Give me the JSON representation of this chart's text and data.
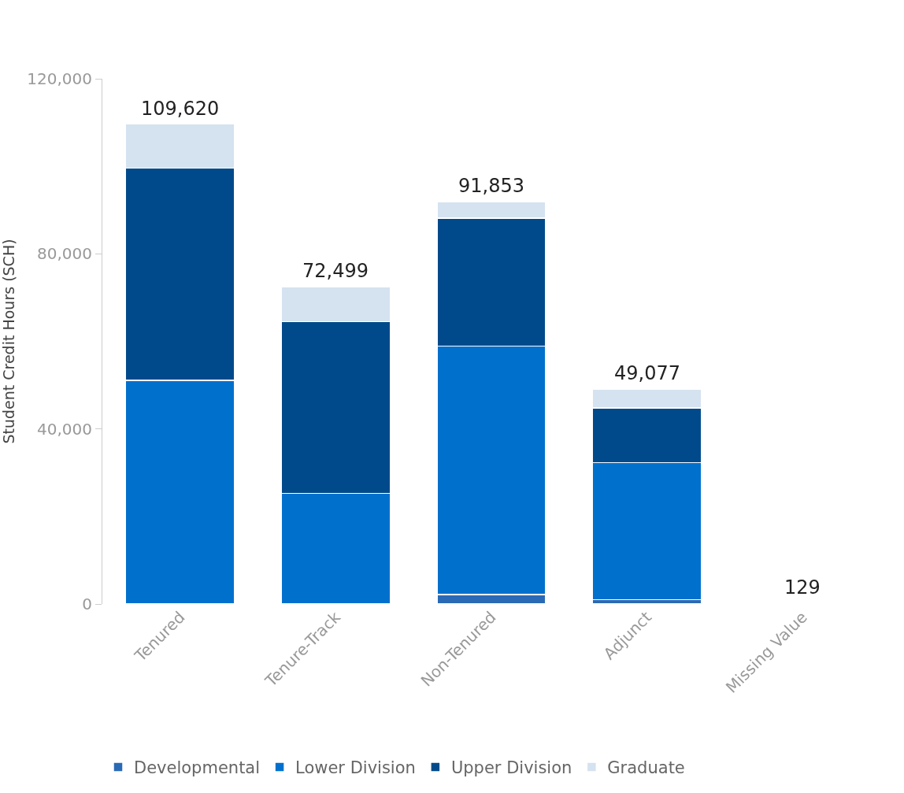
{
  "chart_data": {
    "type": "bar",
    "ylabel": "Student Credit Hours (SCH)",
    "categories": [
      "Tenured",
      "Tenure-Track",
      "Non-Tenured",
      "Adjunct",
      "Missing Value"
    ],
    "stacked": true,
    "legend": "bottom",
    "grid": false,
    "ylim": [
      0,
      120000
    ],
    "yticks": [
      {
        "value": 0,
        "label": "0"
      },
      {
        "value": 40000,
        "label": "40,000"
      },
      {
        "value": 80000,
        "label": "80,000"
      },
      {
        "value": 120000,
        "label": "120,000"
      }
    ],
    "series": [
      {
        "name": "Developmental",
        "color": "#2a6ab5",
        "values": [
          0,
          0,
          2200,
          1000,
          0
        ]
      },
      {
        "name": "Lower Division",
        "color": "#0070cd",
        "values": [
          51100,
          25300,
          56700,
          31300,
          129
        ]
      },
      {
        "name": "Upper Division",
        "color": "#004a8b",
        "values": [
          48500,
          39200,
          29300,
          12500,
          0
        ]
      },
      {
        "name": "Graduate",
        "color": "#d5e2f0",
        "values": [
          10020,
          8000,
          3653,
          4277,
          0
        ]
      }
    ],
    "totals": [
      "109,620",
      "72,499",
      "91,853",
      "49,077",
      "129"
    ]
  }
}
